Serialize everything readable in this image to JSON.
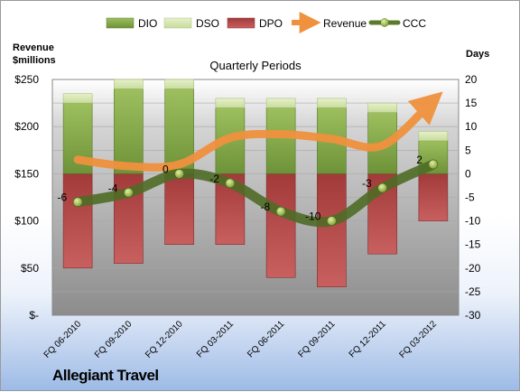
{
  "chart_data": {
    "type": "bar",
    "title": "Quarterly Periods",
    "left_axis_label_line1": "Revenue",
    "left_axis_label_line2": "$millions",
    "right_axis_label": "Days",
    "company": "Allegiant Travel",
    "categories": [
      "FQ 06-2010",
      "FQ 09-2010",
      "FQ 12-2010",
      "FQ 03-2011",
      "FQ 06-2011",
      "FQ 09-2011",
      "FQ 12-2011",
      "FQ 03-2012"
    ],
    "left_ticks": [
      "$250",
      "$200",
      "$150",
      "$100",
      "$50",
      "$-"
    ],
    "right_ticks": [
      "20",
      "15",
      "10",
      "5",
      "0",
      "-5",
      "-10",
      "-15",
      "-20",
      "-25",
      "-30"
    ],
    "left_ylim": [
      0,
      250
    ],
    "right_ylim": [
      -30,
      20
    ],
    "series": [
      {
        "name": "DIO",
        "axis": "days",
        "color": "#7fa043",
        "values": [
          15,
          18,
          18,
          14,
          14,
          14,
          13,
          7
        ]
      },
      {
        "name": "DSO",
        "axis": "days",
        "color": "#d8e8b4",
        "values": [
          2,
          2,
          2,
          2,
          2,
          2,
          2,
          2
        ]
      },
      {
        "name": "DPO",
        "axis": "days",
        "color": "#b34a4a",
        "values": [
          -20,
          -19,
          -15,
          -15,
          -22,
          -24,
          -17,
          -10
        ]
      },
      {
        "name": "Revenue",
        "axis": "revenue",
        "color": "#f0913e",
        "values": [
          165,
          158,
          160,
          188,
          192,
          187,
          180,
          228
        ]
      },
      {
        "name": "CCC",
        "axis": "days",
        "color": "#5b7a2e",
        "values": [
          -6,
          -4,
          0,
          -2,
          -8,
          -10,
          -3,
          2
        ]
      }
    ],
    "ccc_labels": [
      "-6",
      "-4",
      "0",
      "-2",
      "-8",
      "-10",
      "-3",
      "2"
    ],
    "grid": true,
    "legend_position": "top"
  }
}
